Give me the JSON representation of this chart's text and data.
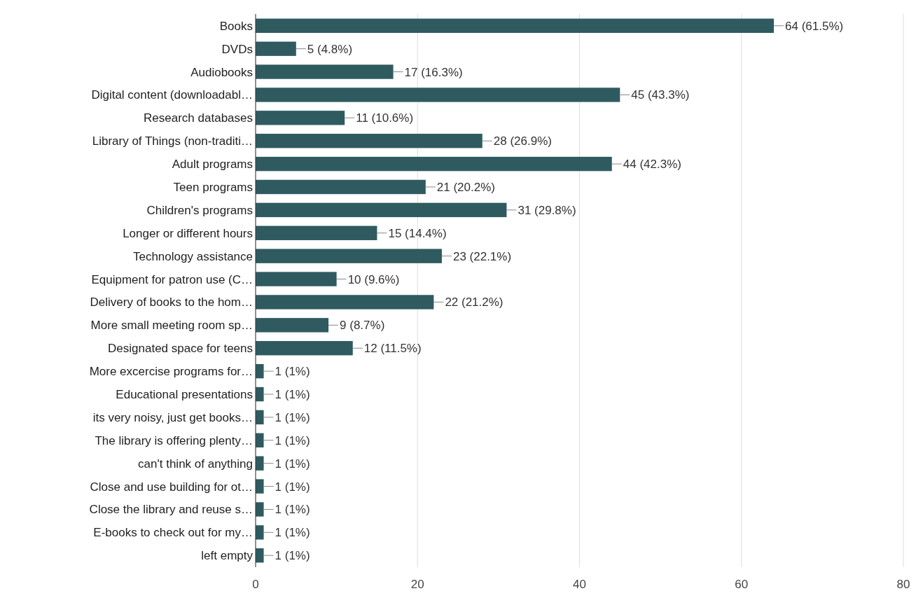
{
  "chart_data": {
    "type": "bar",
    "orientation": "horizontal",
    "categories": [
      "Books",
      "DVDs",
      "Audiobooks",
      "Digital content (downloadabl…",
      "Research databases",
      "Library of Things (non-traditi…",
      "Adult programs",
      "Teen programs",
      "Children's programs",
      "Longer or different hours",
      "Technology assistance",
      "Equipment for patron use (C…",
      "Delivery of books to the hom…",
      "More small meeting room sp…",
      "Designated space for teens",
      "More excercise programs for…",
      "Educational presentations",
      "its very noisy, just get books…",
      "The library is offering plenty…",
      "can't think of anything",
      "Close and use building for ot…",
      "Close the library and reuse s…",
      "E-books to check out for my…",
      "left empty"
    ],
    "values": [
      64,
      5,
      17,
      45,
      11,
      28,
      44,
      21,
      31,
      15,
      23,
      10,
      22,
      9,
      12,
      1,
      1,
      1,
      1,
      1,
      1,
      1,
      1,
      1
    ],
    "value_labels": [
      "64 (61.5%)",
      "5 (4.8%)",
      "17 (16.3%)",
      "45 (43.3%)",
      "11 (10.6%)",
      "28 (26.9%)",
      "44 (42.3%)",
      "21 (20.2%)",
      "31 (29.8%)",
      "15 (14.4%)",
      "23 (22.1%)",
      "10 (9.6%)",
      "22 (21.2%)",
      "9 (8.7%)",
      "12 (11.5%)",
      "1 (1%)",
      "1 (1%)",
      "1 (1%)",
      "1 (1%)",
      "1 (1%)",
      "1 (1%)",
      "1 (1%)",
      "1 (1%)",
      "1 (1%)"
    ],
    "color": "#2f5b60",
    "xlim": [
      0,
      80
    ],
    "xticks": [
      0,
      20,
      40,
      60,
      80
    ],
    "grid": "x"
  }
}
